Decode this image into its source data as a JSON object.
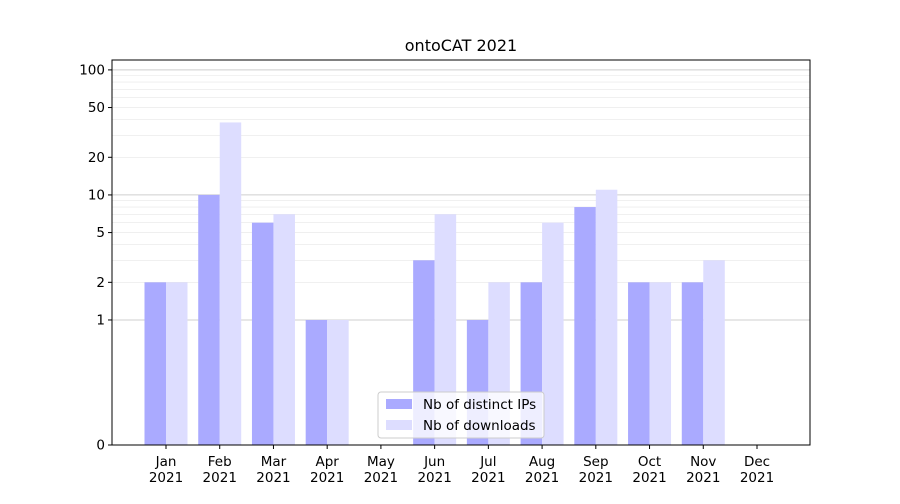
{
  "chart_data": {
    "type": "bar",
    "title": "ontoCAT 2021",
    "xlabel": "",
    "ylabel": "",
    "yscale": "symlog",
    "ylim": [
      0,
      120
    ],
    "yticks": [
      0,
      1,
      2,
      5,
      10,
      20,
      50,
      100
    ],
    "categories": [
      "Jan\n2021",
      "Feb\n2021",
      "Mar\n2021",
      "Apr\n2021",
      "May\n2021",
      "Jun\n2021",
      "Jul\n2021",
      "Aug\n2021",
      "Sep\n2021",
      "Oct\n2021",
      "Nov\n2021",
      "Dec\n2021"
    ],
    "series": [
      {
        "name": "Nb of distinct IPs",
        "color": "#aaaaff",
        "values": [
          2,
          10,
          6,
          1,
          0,
          3,
          1,
          2,
          8,
          2,
          2,
          0
        ]
      },
      {
        "name": "Nb of downloads",
        "color": "#ddddff",
        "values": [
          2,
          38,
          7,
          1,
          0,
          7,
          2,
          6,
          11,
          2,
          3,
          0
        ]
      }
    ],
    "grid": true,
    "legend_position": "lower-center"
  }
}
